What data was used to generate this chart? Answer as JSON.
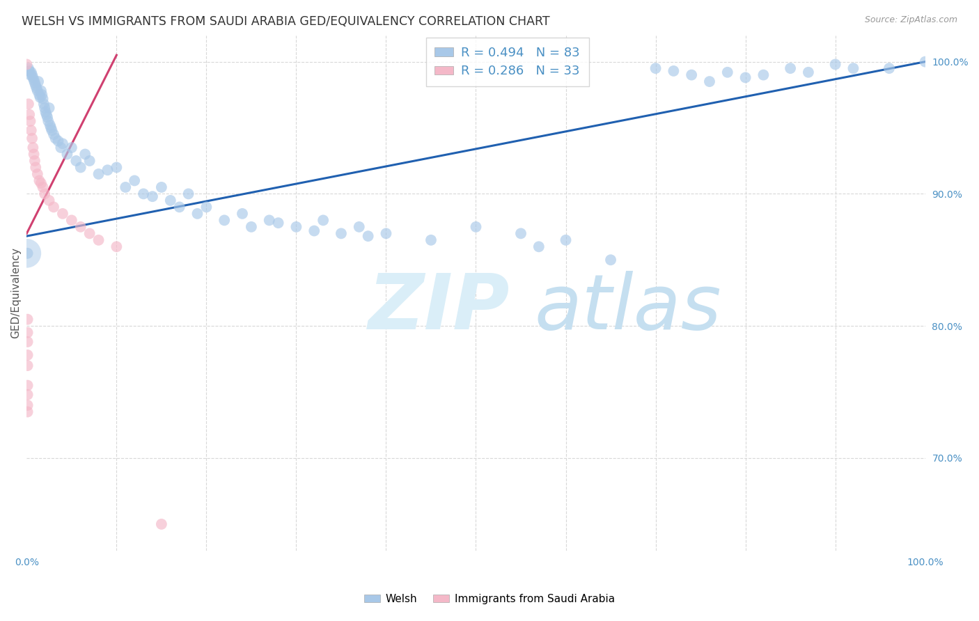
{
  "title": "WELSH VS IMMIGRANTS FROM SAUDI ARABIA GED/EQUIVALENCY CORRELATION CHART",
  "source": "Source: ZipAtlas.com",
  "ylabel": "GED/Equivalency",
  "legend_label1": "Welsh",
  "legend_label2": "Immigrants from Saudi Arabia",
  "R1": 0.494,
  "N1": 83,
  "R2": 0.286,
  "N2": 33,
  "blue_color": "#a8c8e8",
  "pink_color": "#f4b8c8",
  "blue_line_color": "#2060b0",
  "pink_line_color": "#d04070",
  "grid_color": "#d8d8d8",
  "blue_dots": [
    [
      0.2,
      99.5
    ],
    [
      0.3,
      99.3
    ],
    [
      0.4,
      99.0
    ],
    [
      0.5,
      99.2
    ],
    [
      0.6,
      99.0
    ],
    [
      0.7,
      98.8
    ],
    [
      0.8,
      98.6
    ],
    [
      0.9,
      98.4
    ],
    [
      1.0,
      98.2
    ],
    [
      1.1,
      98.0
    ],
    [
      1.2,
      97.8
    ],
    [
      1.3,
      98.5
    ],
    [
      1.4,
      97.5
    ],
    [
      1.5,
      97.3
    ],
    [
      1.6,
      97.8
    ],
    [
      1.7,
      97.5
    ],
    [
      1.8,
      97.2
    ],
    [
      1.9,
      96.8
    ],
    [
      2.0,
      96.5
    ],
    [
      2.1,
      96.2
    ],
    [
      2.2,
      96.0
    ],
    [
      2.3,
      95.8
    ],
    [
      2.4,
      95.5
    ],
    [
      2.5,
      96.5
    ],
    [
      2.6,
      95.2
    ],
    [
      2.7,
      95.0
    ],
    [
      2.8,
      94.8
    ],
    [
      3.0,
      94.5
    ],
    [
      3.2,
      94.2
    ],
    [
      3.5,
      94.0
    ],
    [
      3.8,
      93.5
    ],
    [
      4.0,
      93.8
    ],
    [
      4.5,
      93.0
    ],
    [
      5.0,
      93.5
    ],
    [
      5.5,
      92.5
    ],
    [
      6.0,
      92.0
    ],
    [
      6.5,
      93.0
    ],
    [
      7.0,
      92.5
    ],
    [
      8.0,
      91.5
    ],
    [
      9.0,
      91.8
    ],
    [
      10.0,
      92.0
    ],
    [
      11.0,
      90.5
    ],
    [
      12.0,
      91.0
    ],
    [
      13.0,
      90.0
    ],
    [
      14.0,
      89.8
    ],
    [
      15.0,
      90.5
    ],
    [
      16.0,
      89.5
    ],
    [
      17.0,
      89.0
    ],
    [
      18.0,
      90.0
    ],
    [
      19.0,
      88.5
    ],
    [
      20.0,
      89.0
    ],
    [
      22.0,
      88.0
    ],
    [
      24.0,
      88.5
    ],
    [
      25.0,
      87.5
    ],
    [
      27.0,
      88.0
    ],
    [
      28.0,
      87.8
    ],
    [
      30.0,
      87.5
    ],
    [
      32.0,
      87.2
    ],
    [
      33.0,
      88.0
    ],
    [
      35.0,
      87.0
    ],
    [
      37.0,
      87.5
    ],
    [
      38.0,
      86.8
    ],
    [
      40.0,
      87.0
    ],
    [
      45.0,
      86.5
    ],
    [
      50.0,
      87.5
    ],
    [
      55.0,
      87.0
    ],
    [
      57.0,
      86.0
    ],
    [
      60.0,
      86.5
    ],
    [
      65.0,
      85.0
    ],
    [
      70.0,
      99.5
    ],
    [
      72.0,
      99.3
    ],
    [
      74.0,
      99.0
    ],
    [
      76.0,
      98.5
    ],
    [
      78.0,
      99.2
    ],
    [
      80.0,
      98.8
    ],
    [
      82.0,
      99.0
    ],
    [
      85.0,
      99.5
    ],
    [
      87.0,
      99.2
    ],
    [
      90.0,
      99.8
    ],
    [
      92.0,
      99.5
    ],
    [
      96.0,
      99.5
    ],
    [
      100.0,
      100.0
    ],
    [
      0.1,
      85.5
    ]
  ],
  "pink_dots": [
    [
      0.0,
      99.8
    ],
    [
      0.2,
      96.8
    ],
    [
      0.3,
      96.0
    ],
    [
      0.4,
      95.5
    ],
    [
      0.5,
      94.8
    ],
    [
      0.6,
      94.2
    ],
    [
      0.7,
      93.5
    ],
    [
      0.8,
      93.0
    ],
    [
      0.9,
      92.5
    ],
    [
      1.0,
      92.0
    ],
    [
      1.2,
      91.5
    ],
    [
      1.4,
      91.0
    ],
    [
      1.6,
      90.8
    ],
    [
      1.8,
      90.5
    ],
    [
      2.0,
      90.0
    ],
    [
      2.5,
      89.5
    ],
    [
      3.0,
      89.0
    ],
    [
      0.1,
      80.5
    ],
    [
      0.1,
      79.5
    ],
    [
      0.1,
      78.8
    ],
    [
      4.0,
      88.5
    ],
    [
      5.0,
      88.0
    ],
    [
      6.0,
      87.5
    ],
    [
      7.0,
      87.0
    ],
    [
      8.0,
      86.5
    ],
    [
      0.1,
      77.8
    ],
    [
      0.1,
      77.0
    ],
    [
      10.0,
      86.0
    ],
    [
      0.1,
      75.5
    ],
    [
      0.1,
      74.8
    ],
    [
      0.1,
      74.0
    ],
    [
      0.1,
      73.5
    ],
    [
      15.0,
      65.0
    ]
  ],
  "large_blue_dot": [
    0.0,
    85.5
  ],
  "blue_line": [
    0.0,
    86.8,
    100.0,
    100.0
  ],
  "pink_line": [
    0.0,
    87.0,
    10.0,
    100.5
  ],
  "xlim": [
    0,
    100
  ],
  "ylim": [
    63,
    102
  ],
  "figsize": [
    14.06,
    8.92
  ],
  "dpi": 100
}
